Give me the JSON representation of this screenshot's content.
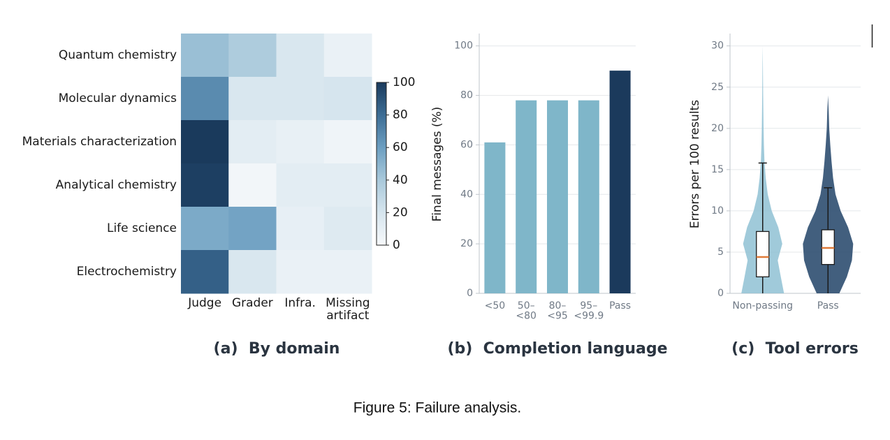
{
  "chart_data": [
    {
      "type": "heatmap",
      "title": "(a)  By domain",
      "rows": [
        "Quantum chemistry",
        "Molecular dynamics",
        "Materials characterization",
        "Analytical chemistry",
        "Life science",
        "Electrochemistry"
      ],
      "columns": [
        "Judge",
        "Grader",
        "Infra.",
        "Missing\nartifact"
      ],
      "values": [
        [
          45,
          38,
          18,
          8
        ],
        [
          68,
          18,
          18,
          20
        ],
        [
          100,
          12,
          9,
          5
        ],
        [
          98,
          3,
          12,
          12
        ],
        [
          55,
          58,
          10,
          15
        ],
        [
          85,
          18,
          8,
          8
        ]
      ],
      "colormap": [
        "#f7f9fb",
        "#d6e5ee",
        "#a9c9db",
        "#6d9fc1",
        "#3d6d95",
        "#1a3a5c"
      ],
      "clim": [
        0,
        100
      ],
      "cticks": [
        0,
        20,
        40,
        60,
        80,
        100
      ]
    },
    {
      "type": "bar",
      "title": "(b)  Completion language",
      "ylabel": "Final messages (%)",
      "categories": [
        "<50",
        "50–\n<80",
        "80–\n<95",
        "95–\n<99.9",
        "Pass"
      ],
      "values": [
        61,
        78,
        78,
        78,
        90
      ],
      "colors": [
        "#7fb6c9",
        "#7fb6c9",
        "#7fb6c9",
        "#7fb6c9",
        "#1b3a5c"
      ],
      "ylim": [
        0,
        105
      ],
      "yticks": [
        0,
        20,
        40,
        60,
        80,
        100
      ],
      "grid": true
    },
    {
      "type": "violin",
      "title": "(c)  Tool errors",
      "ylabel": "Errors per 100 results",
      "categories": [
        "Non-passing",
        "Pass"
      ],
      "kde_y": [
        0,
        2,
        4,
        6,
        8,
        10,
        12,
        14,
        16,
        18,
        20,
        22,
        24,
        26,
        28,
        30
      ],
      "boxes": [
        {
          "whislo": 0,
          "q1": 2,
          "median": 4.4,
          "q3": 7.5,
          "whishi": 15.8,
          "color": "#8fc1d4",
          "kde": [
            0.85,
            0.72,
            0.6,
            0.78,
            0.62,
            0.36,
            0.2,
            0.12,
            0.07,
            0.05,
            0.035,
            0.025,
            0.018,
            0.012,
            0.006,
            0
          ]
        },
        {
          "whislo": 0,
          "q1": 3.5,
          "median": 5.5,
          "q3": 7.7,
          "whishi": 12.8,
          "color": "#2d4e70",
          "kde": [
            0.45,
            0.75,
            0.95,
            1.0,
            0.8,
            0.5,
            0.3,
            0.2,
            0.14,
            0.09,
            0.05,
            0.03,
            0,
            0,
            0,
            0
          ]
        }
      ],
      "median_color": "#e07b39",
      "ylim": [
        0,
        31.5
      ],
      "yticks": [
        0,
        5,
        10,
        15,
        20,
        25,
        30
      ],
      "grid": true
    }
  ],
  "caption": "Figure 5: Failure analysis."
}
